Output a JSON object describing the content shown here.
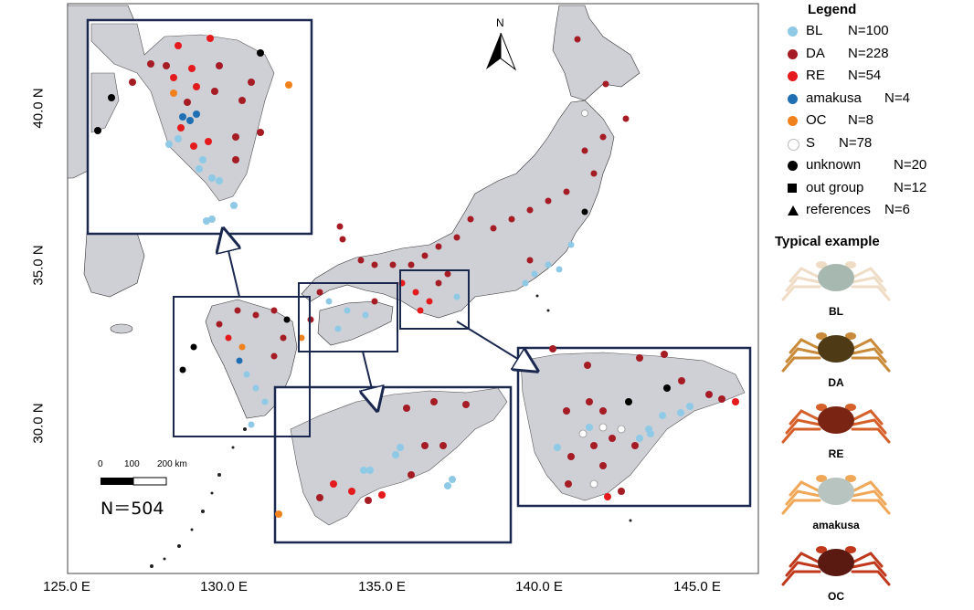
{
  "map": {
    "y_axis_labels": [
      "40.0 N",
      "35.0 N",
      "30.0 N"
    ],
    "x_axis_labels": [
      "125.0 E",
      "130.0 E",
      "135.0 E",
      "140.0 E",
      "145.0 E"
    ],
    "north_arrow_label": "N",
    "scale_bar": {
      "ticks": [
        "0",
        "100",
        "200 km"
      ]
    },
    "total_samples": "N＝504"
  },
  "legend": {
    "title": "Legend",
    "items": [
      {
        "label": "BL",
        "count": "N=100",
        "symbol": "circle",
        "color": "#8ecae6"
      },
      {
        "label": "DA",
        "count": "N=228",
        "symbol": "circle",
        "color": "#a51c24"
      },
      {
        "label": "RE",
        "count": "N=54",
        "symbol": "circle",
        "color": "#e41a1c"
      },
      {
        "label": "amakusa",
        "count": "N=4",
        "symbol": "circle",
        "color": "#1f6fb2"
      },
      {
        "label": "OC",
        "count": "N=8",
        "symbol": "circle",
        "color": "#f0821e"
      },
      {
        "label": "S",
        "count": "N=78",
        "symbol": "circle",
        "color": "#ffffff"
      },
      {
        "label": "unknown",
        "count": "N=20",
        "symbol": "circle",
        "color": "#000000"
      },
      {
        "label": "out group",
        "count": "N=12",
        "symbol": "square",
        "color": "#000000"
      },
      {
        "label": "references",
        "count": "N=6",
        "symbol": "triangle",
        "color": "#000000"
      }
    ]
  },
  "typical_example": {
    "title": "Typical example",
    "crabs": [
      {
        "label": "BL",
        "shell": "#a7b8b0",
        "legs": "#eedcc4"
      },
      {
        "label": "DA",
        "shell": "#4f3a16",
        "legs": "#c98b3a"
      },
      {
        "label": "RE",
        "shell": "#7a2414",
        "legs": "#d6602a"
      },
      {
        "label": "amakusa",
        "shell": "#b8c4c0",
        "legs": "#f0a858"
      },
      {
        "label": "OC",
        "shell": "#5a1a12",
        "legs": "#c0391c"
      }
    ]
  }
}
